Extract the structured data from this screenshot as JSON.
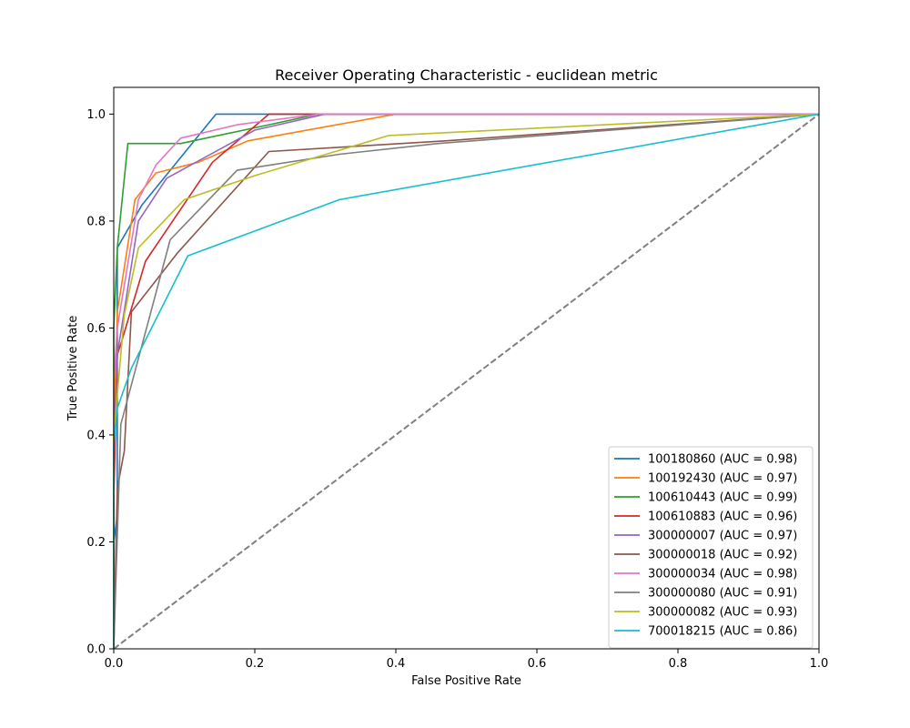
{
  "chart_data": {
    "type": "line",
    "title": "Receiver Operating Characteristic - euclidean metric",
    "xlabel": "False Positive Rate",
    "ylabel": "True Positive Rate",
    "xlim": [
      0,
      1
    ],
    "ylim": [
      0,
      1.05
    ],
    "xticks": [
      "0.0",
      "0.2",
      "0.4",
      "0.6",
      "0.8",
      "1.0"
    ],
    "yticks": [
      "0.0",
      "0.2",
      "0.4",
      "0.6",
      "0.8",
      "1.0"
    ],
    "grid": false,
    "legend_position": "lower-right",
    "diagonal": {
      "x": [
        0,
        1
      ],
      "y": [
        0,
        1
      ],
      "color": "#808080",
      "style": "dashed"
    },
    "series": [
      {
        "name": "100180860 (AUC = 0.98)",
        "color": "#1f77b4",
        "x": [
          0,
          0,
          0.005,
          0.005,
          0.04,
          0.145,
          1.0
        ],
        "y": [
          0,
          0.2,
          0.25,
          0.75,
          0.83,
          1.0,
          1.0
        ]
      },
      {
        "name": "100192430 (AUC = 0.97)",
        "color": "#ff7f0e",
        "x": [
          0,
          0,
          0.005,
          0.03,
          0.06,
          0.12,
          0.19,
          0.4,
          1.0
        ],
        "y": [
          0,
          0.4,
          0.63,
          0.84,
          0.89,
          0.91,
          0.95,
          1.0,
          1.0
        ]
      },
      {
        "name": "100610443 (AUC = 0.99)",
        "color": "#2ca02c",
        "x": [
          0,
          0,
          0.005,
          0.02,
          0.095,
          0.22,
          0.29,
          1.0
        ],
        "y": [
          0,
          0.6,
          0.75,
          0.945,
          0.945,
          0.98,
          1.0,
          1.0
        ]
      },
      {
        "name": "100610883 (AUC = 0.96)",
        "color": "#d62728",
        "x": [
          0,
          0,
          0.005,
          0.01,
          0.045,
          0.14,
          0.22,
          1.0
        ],
        "y": [
          0,
          0.28,
          0.55,
          0.57,
          0.725,
          0.91,
          1.0,
          1.0
        ]
      },
      {
        "name": "300000007 (AUC = 0.97)",
        "color": "#9467bd",
        "x": [
          0,
          0,
          0.005,
          0.035,
          0.075,
          0.2,
          0.3,
          1.0
        ],
        "y": [
          0,
          0.35,
          0.55,
          0.8,
          0.88,
          0.97,
          1.0,
          1.0
        ]
      },
      {
        "name": "300000018 (AUC = 0.92)",
        "color": "#8c564b",
        "x": [
          0,
          0.005,
          0.015,
          0.025,
          0.09,
          0.22,
          0.47,
          1.0
        ],
        "y": [
          0,
          0.3,
          0.37,
          0.63,
          0.74,
          0.93,
          0.95,
          1.0
        ]
      },
      {
        "name": "300000034 (AUC = 0.98)",
        "color": "#e377c2",
        "x": [
          0,
          0,
          0.005,
          0.035,
          0.06,
          0.095,
          0.175,
          0.29,
          1.0
        ],
        "y": [
          0,
          0.5,
          0.6,
          0.84,
          0.905,
          0.955,
          0.98,
          1.0,
          1.0
        ]
      },
      {
        "name": "300000080 (AUC = 0.91)",
        "color": "#7f7f7f",
        "x": [
          0,
          0.01,
          0.08,
          0.175,
          0.32,
          0.46,
          1.0
        ],
        "y": [
          0,
          0.42,
          0.765,
          0.895,
          0.925,
          0.945,
          1.0
        ]
      },
      {
        "name": "300000082 (AUC = 0.93)",
        "color": "#bcbd22",
        "x": [
          0,
          0,
          0.015,
          0.035,
          0.1,
          0.2,
          0.39,
          1.0
        ],
        "y": [
          0,
          0.4,
          0.625,
          0.75,
          0.84,
          0.885,
          0.96,
          1.0
        ]
      },
      {
        "name": "700018215 (AUC = 0.86)",
        "color": "#17becf",
        "x": [
          0,
          0,
          0.005,
          0.025,
          0.105,
          0.32,
          1.0
        ],
        "y": [
          0,
          0.38,
          0.45,
          0.525,
          0.735,
          0.84,
          1.0
        ]
      }
    ]
  }
}
